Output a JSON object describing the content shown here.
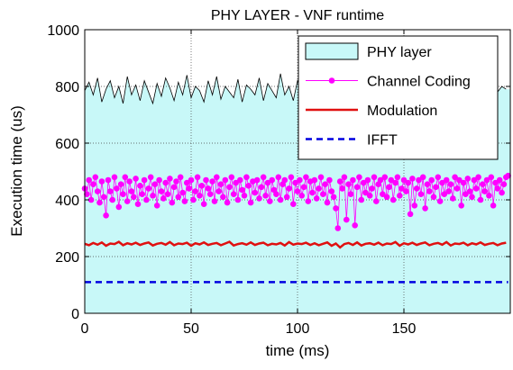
{
  "chart_data": {
    "type": "line",
    "title": "PHY LAYER - VNF runtime",
    "xlabel": "time (ms)",
    "ylabel": "Execution time (us)",
    "xlim": [
      0,
      200
    ],
    "ylim": [
      0,
      1000
    ],
    "x_ticks": [
      "0",
      "50",
      "100",
      "150"
    ],
    "y_ticks": [
      "0",
      "200",
      "400",
      "600",
      "800",
      "1000"
    ],
    "grid": true,
    "legend_position": "top-right",
    "series": [
      {
        "name": "PHY layer",
        "style": "filled-area",
        "color": "#000000",
        "fill": "#c8f8f8",
        "x": [
          0,
          2,
          4,
          6,
          8,
          10,
          12,
          14,
          16,
          18,
          20,
          22,
          24,
          26,
          28,
          30,
          32,
          34,
          36,
          38,
          40,
          42,
          44,
          46,
          48,
          50,
          52,
          54,
          56,
          58,
          60,
          62,
          64,
          66,
          68,
          70,
          72,
          74,
          76,
          78,
          80,
          82,
          84,
          86,
          88,
          90,
          92,
          94,
          96,
          98,
          100,
          102,
          104,
          106,
          108,
          110,
          112,
          114,
          116,
          118,
          120,
          122,
          124,
          126,
          128,
          130,
          132,
          134,
          136,
          138,
          140,
          142,
          144,
          146,
          148,
          150,
          152,
          154,
          156,
          158,
          160,
          162,
          164,
          166,
          168,
          170,
          172,
          174,
          176,
          178,
          180,
          182,
          184,
          186,
          188,
          190,
          192,
          194,
          196,
          198
        ],
        "values": [
          785,
          815,
          770,
          830,
          745,
          790,
          820,
          760,
          800,
          740,
          835,
          770,
          805,
          750,
          820,
          780,
          740,
          810,
          765,
          830,
          795,
          750,
          815,
          770,
          840,
          760,
          800,
          785,
          745,
          820,
          770,
          835,
          755,
          800,
          780,
          760,
          825,
          745,
          805,
          790,
          770,
          830,
          750,
          810,
          785,
          760,
          845,
          770,
          800,
          750,
          820,
          780,
          760,
          810,
          740,
          830,
          775,
          805,
          760,
          820,
          750,
          790,
          835,
          770,
          800,
          745,
          815,
          780,
          760,
          830,
          790,
          750,
          810,
          770,
          840,
          760,
          800,
          780,
          745,
          825,
          770,
          810,
          755,
          800,
          785,
          760,
          830,
          750,
          815,
          775,
          800,
          760,
          835,
          770,
          790,
          745,
          820,
          780,
          800,
          790
        ]
      },
      {
        "name": "Channel Coding",
        "style": "line-marker",
        "color": "#ff00ff",
        "x": [
          0,
          1,
          2,
          3,
          4,
          5,
          6,
          7,
          8,
          9,
          10,
          11,
          12,
          13,
          14,
          15,
          16,
          17,
          18,
          19,
          20,
          21,
          22,
          23,
          24,
          25,
          26,
          27,
          28,
          29,
          30,
          31,
          32,
          33,
          34,
          35,
          36,
          37,
          38,
          39,
          40,
          41,
          42,
          43,
          44,
          45,
          46,
          47,
          48,
          49,
          50,
          51,
          52,
          53,
          54,
          55,
          56,
          57,
          58,
          59,
          60,
          61,
          62,
          63,
          64,
          65,
          66,
          67,
          68,
          69,
          70,
          71,
          72,
          73,
          74,
          75,
          76,
          77,
          78,
          79,
          80,
          81,
          82,
          83,
          84,
          85,
          86,
          87,
          88,
          89,
          90,
          91,
          92,
          93,
          94,
          95,
          96,
          97,
          98,
          99,
          100,
          101,
          102,
          103,
          104,
          105,
          106,
          107,
          108,
          109,
          110,
          111,
          112,
          113,
          114,
          115,
          116,
          117,
          118,
          119,
          120,
          121,
          122,
          123,
          124,
          125,
          126,
          127,
          128,
          129,
          130,
          131,
          132,
          133,
          134,
          135,
          136,
          137,
          138,
          139,
          140,
          141,
          142,
          143,
          144,
          145,
          146,
          147,
          148,
          149,
          150,
          151,
          152,
          153,
          154,
          155,
          156,
          157,
          158,
          159,
          160,
          161,
          162,
          163,
          164,
          165,
          166,
          167,
          168,
          169,
          170,
          171,
          172,
          173,
          174,
          175,
          176,
          177,
          178,
          179,
          180,
          181,
          182,
          183,
          184,
          185,
          186,
          187,
          188,
          189,
          190,
          191,
          192,
          193,
          194,
          195,
          196,
          197,
          198,
          199
        ],
        "values": [
          440,
          420,
          470,
          400,
          455,
          480,
          430,
          390,
          465,
          410,
          345,
          470,
          430,
          400,
          480,
          440,
          375,
          455,
          420,
          480,
          395,
          465,
          430,
          410,
          475,
          385,
          450,
          420,
          470,
          400,
          440,
          480,
          415,
          455,
          380,
          470,
          430,
          405,
          460,
          420,
          475,
          390,
          445,
          465,
          410,
          480,
          425,
          395,
          460,
          440,
          470,
          400,
          430,
          480,
          415,
          450,
          385,
          470,
          440,
          420,
          465,
          395,
          480,
          430,
          455,
          410,
          470,
          390,
          445,
          480,
          420,
          460,
          400,
          470,
          435,
          415,
          480,
          450,
          390,
          465,
          425,
          470,
          405,
          445,
          480,
          415,
          460,
          395,
          470,
          435,
          420,
          480,
          400,
          455,
          470,
          410,
          440,
          480,
          385,
          460,
          430,
          470,
          415,
          445,
          480,
          395,
          465,
          425,
          470,
          405,
          440,
          480,
          420,
          455,
          390,
          470,
          430,
          410,
          370,
          300,
          465,
          440,
          480,
          330,
          455,
          420,
          470,
          310,
          445,
          480,
          400,
          460,
          425,
          470,
          415,
          440,
          480,
          395,
          455,
          470,
          420,
          480,
          410,
          445,
          470,
          400,
          460,
          480,
          415,
          440,
          470,
          430,
          460,
          350,
          475,
          380,
          440,
          470,
          420,
          480,
          370,
          455,
          430,
          470,
          410,
          445,
          480,
          395,
          460,
          420,
          470,
          430,
          455,
          405,
          480,
          440,
          470,
          380,
          460,
          420,
          475,
          430,
          410,
          470,
          440,
          480,
          400,
          455,
          430,
          470,
          415,
          480,
          380,
          460,
          440,
          470,
          425,
          455,
          480,
          485
        ]
      },
      {
        "name": "Modulation",
        "style": "line",
        "color": "#e01010",
        "x": [
          0,
          2,
          4,
          6,
          8,
          10,
          12,
          14,
          16,
          18,
          20,
          22,
          24,
          26,
          28,
          30,
          32,
          34,
          36,
          38,
          40,
          42,
          44,
          46,
          48,
          50,
          52,
          54,
          56,
          58,
          60,
          62,
          64,
          66,
          68,
          70,
          72,
          74,
          76,
          78,
          80,
          82,
          84,
          86,
          88,
          90,
          92,
          94,
          96,
          98,
          100,
          102,
          104,
          106,
          108,
          110,
          112,
          114,
          116,
          118,
          120,
          122,
          124,
          126,
          128,
          130,
          132,
          134,
          136,
          138,
          140,
          142,
          144,
          146,
          148,
          150,
          152,
          154,
          156,
          158,
          160,
          162,
          164,
          166,
          168,
          170,
          172,
          174,
          176,
          178,
          180,
          182,
          184,
          186,
          188,
          190,
          192,
          194,
          196,
          198
        ],
        "values": [
          245,
          240,
          248,
          242,
          250,
          238,
          246,
          244,
          252,
          240,
          247,
          243,
          249,
          241,
          246,
          250,
          239,
          245,
          248,
          242,
          251,
          240,
          246,
          244,
          249,
          238,
          247,
          243,
          250,
          241,
          245,
          248,
          240,
          246,
          252,
          239,
          244,
          247,
          242,
          250,
          241,
          246,
          249,
          240,
          245,
          243,
          248,
          239,
          251,
          242,
          246,
          244,
          249,
          241,
          247,
          240,
          245,
          250,
          238,
          246,
          232,
          244,
          248,
          241,
          250,
          239,
          245,
          247,
          242,
          249,
          240,
          246,
          244,
          251,
          238,
          247,
          243,
          249,
          241,
          246,
          250,
          240,
          245,
          248,
          242,
          251,
          239,
          246,
          244,
          249,
          240,
          247,
          243,
          250,
          241,
          245,
          248,
          240,
          246,
          249
        ]
      },
      {
        "name": "IFFT",
        "style": "dashed-line",
        "color": "#0000e0",
        "x": [
          0,
          50,
          100,
          150,
          199
        ],
        "values": [
          110,
          110,
          110,
          110,
          110
        ]
      }
    ]
  }
}
